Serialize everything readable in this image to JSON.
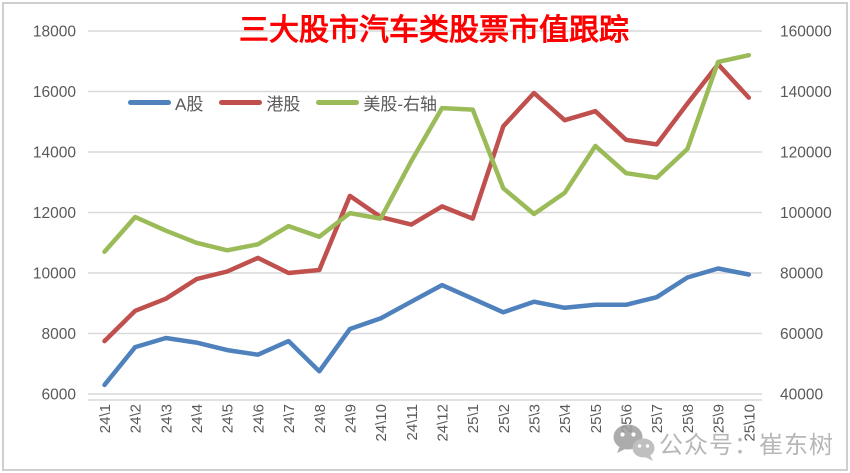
{
  "chart_data": {
    "type": "line",
    "title": "三大股市汽车类股票市值跟踪",
    "title_color": "#FF0000",
    "grid": "horizontal-only",
    "legend_position": "top",
    "categories": [
      "24\\1",
      "24\\2",
      "24\\3",
      "24\\4",
      "24\\5",
      "24\\6",
      "24\\7",
      "24\\8",
      "24\\9",
      "24\\10",
      "24\\11",
      "24\\12",
      "25\\1",
      "25\\2",
      "25\\3",
      "25\\4",
      "25\\5",
      "25\\6",
      "25\\7",
      "25\\8",
      "25\\9",
      "25\\10"
    ],
    "series": [
      {
        "name": "A股",
        "axis": "left",
        "color": "#4F81BD",
        "values": [
          6300,
          7550,
          7850,
          7700,
          7450,
          7300,
          7750,
          6750,
          8150,
          8500,
          9050,
          9600,
          9150,
          8700,
          9050,
          8850,
          8950,
          8950,
          9200,
          9850,
          10150,
          9950
        ]
      },
      {
        "name": "港股",
        "axis": "left",
        "color": "#C0504D",
        "values": [
          7750,
          8750,
          9150,
          9800,
          10050,
          10500,
          10000,
          10100,
          12550,
          11850,
          11600,
          12200,
          11800,
          14850,
          15950,
          15050,
          15350,
          14400,
          14250,
          15600,
          16900,
          15800
        ]
      },
      {
        "name": "美股-右轴",
        "axis": "right",
        "color": "#9BBB59",
        "values": [
          87000,
          98500,
          94000,
          90000,
          87500,
          89500,
          95500,
          92000,
          99800,
          98000,
          117000,
          134500,
          134000,
          108000,
          99500,
          106500,
          122000,
          113000,
          111500,
          121000,
          149800,
          152000
        ]
      }
    ],
    "left_axis": {
      "min": 6000,
      "max": 18000,
      "ticks": [
        "18000",
        "16000",
        "14000",
        "12000",
        "10000",
        "8000",
        "6000"
      ]
    },
    "right_axis": {
      "min": 40000,
      "max": 160000,
      "ticks": [
        "160000",
        "140000",
        "120000",
        "100000",
        "80000",
        "60000",
        "40000"
      ]
    },
    "tick_color": "#595959",
    "gridline_color": "#D9D9D9"
  },
  "watermark": {
    "icon": "wechat-icon",
    "text": "公众号：崔东树",
    "color": "#ABABAB"
  }
}
